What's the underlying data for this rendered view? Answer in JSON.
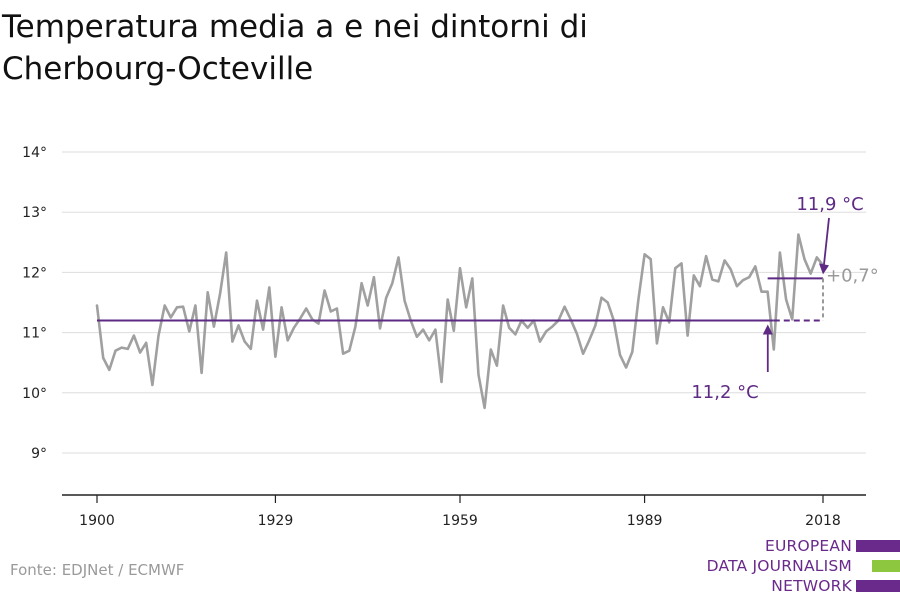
{
  "title": "Temperatura media a e nei dintorni di Cherbourg-Octeville",
  "source": "Fonte: EDJNet / ECMWF",
  "logo": {
    "lines": [
      "EUROPEAN",
      "DATA JOURNALISM",
      "NETWORK"
    ],
    "colors": [
      "#6a2a8c",
      "#8dc63f",
      "#6a2a8c"
    ]
  },
  "colors": {
    "series": "#a0a0a0",
    "reference": "#5e2a84",
    "grid": "#dddddd",
    "axis": "#222222",
    "difference": "#999999"
  },
  "chart_data": {
    "type": "line",
    "title": "Temperatura media a e nei dintorni di Cherbourg-Octeville",
    "xlabel": "",
    "ylabel": "",
    "ylim": [
      9,
      14
    ],
    "xlim": [
      1900,
      2018
    ],
    "y_ticks": [
      9,
      10,
      11,
      12,
      13,
      14
    ],
    "y_tick_labels": [
      "9°",
      "10°",
      "11°",
      "12°",
      "13°",
      "14°"
    ],
    "x_ticks": [
      1900,
      1929,
      1959,
      1989,
      2018
    ],
    "x_tick_labels": [
      "1900",
      "1929",
      "1959",
      "1989",
      "2018"
    ],
    "grid": true,
    "series": [
      {
        "x": [
          1900,
          1901,
          1902,
          1903,
          1904,
          1905,
          1906,
          1907,
          1908,
          1909,
          1910,
          1911,
          1912,
          1913,
          1914,
          1915,
          1916,
          1917,
          1918,
          1919,
          1920,
          1921,
          1922,
          1923,
          1924,
          1925,
          1926,
          1927,
          1928,
          1929,
          1930,
          1931,
          1932,
          1933,
          1934,
          1935,
          1936,
          1937,
          1938,
          1939,
          1940,
          1941,
          1942,
          1943,
          1944,
          1945,
          1946,
          1947,
          1948,
          1949,
          1950,
          1951,
          1952,
          1953,
          1954,
          1955,
          1956,
          1957,
          1958,
          1959,
          1960,
          1961,
          1962,
          1963,
          1964,
          1965,
          1966,
          1967,
          1968,
          1969,
          1970,
          1971,
          1972,
          1973,
          1974,
          1975,
          1976,
          1977,
          1978,
          1979,
          1980,
          1981,
          1982,
          1983,
          1984,
          1985,
          1986,
          1987,
          1988,
          1989,
          1990,
          1991,
          1992,
          1993,
          1994,
          1995,
          1996,
          1997,
          1998,
          1999,
          2000,
          2001,
          2002,
          2003,
          2004,
          2005,
          2006,
          2007,
          2008,
          2009,
          2010,
          2011,
          2012,
          2013,
          2014,
          2015,
          2016,
          2017,
          2018
        ],
        "values": [
          11.45,
          10.58,
          10.38,
          10.7,
          10.75,
          10.73,
          10.95,
          10.67,
          10.83,
          10.13,
          10.95,
          11.45,
          11.25,
          11.42,
          11.43,
          11.02,
          11.45,
          10.33,
          11.67,
          11.1,
          11.65,
          12.33,
          10.85,
          11.12,
          10.85,
          10.73,
          11.53,
          11.05,
          11.75,
          10.6,
          11.42,
          10.87,
          11.08,
          11.23,
          11.4,
          11.22,
          11.15,
          11.7,
          11.35,
          11.4,
          10.65,
          10.7,
          11.1,
          11.82,
          11.45,
          11.92,
          11.07,
          11.58,
          11.82,
          12.25,
          11.53,
          11.2,
          10.93,
          11.05,
          10.87,
          11.05,
          10.18,
          11.55,
          11.03,
          12.07,
          11.42,
          11.9,
          10.3,
          9.75,
          10.72,
          10.45,
          11.45,
          11.08,
          10.97,
          11.2,
          11.08,
          11.2,
          10.85,
          11.02,
          11.1,
          11.2,
          11.43,
          11.22,
          10.98,
          10.65,
          10.87,
          11.12,
          11.58,
          11.5,
          11.2,
          10.63,
          10.42,
          10.68,
          11.55,
          12.3,
          12.22,
          10.82,
          11.42,
          11.17,
          12.07,
          12.15,
          10.95,
          11.95,
          11.77,
          12.27,
          11.88,
          11.85,
          12.2,
          12.05,
          11.77,
          11.87,
          11.92,
          12.1,
          11.68,
          11.68,
          10.72,
          12.33,
          11.55,
          11.22,
          12.63,
          12.22,
          11.98,
          12.25,
          12.12
        ]
      }
    ],
    "annotations": {
      "reference_start": {
        "value": 11.2,
        "label": "11,2 °C",
        "x_from": 1900,
        "x_to": 2010,
        "dashed_to": 2018
      },
      "reference_end": {
        "value": 11.9,
        "label": "11,9 °C",
        "x_from": 2009,
        "x_to": 2018
      },
      "difference": {
        "label": "+0,7°"
      }
    }
  }
}
